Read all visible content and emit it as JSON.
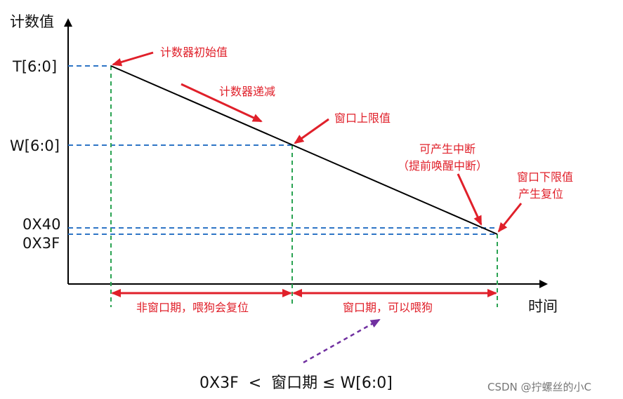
{
  "diagram": {
    "y_axis_label": "计数值",
    "x_axis_label": "时间",
    "y_ticks": {
      "t": "T[6:0]",
      "w": "W[6:0]",
      "h40": "0X40",
      "h3f": "0X3F"
    },
    "annotations": {
      "initial": "计数器初始值",
      "decrement": "计数器递减",
      "upper": "窗口上限值",
      "interrupt_1": "可产生中断",
      "interrupt_2": "（提前唤醒中断）",
      "lower_1": "窗口下限值",
      "lower_2": "产生复位"
    },
    "periods": {
      "non_window": "非窗口期，喂狗会复位",
      "window": "窗口期，可以喂狗"
    },
    "formula": "0X3F  <  窗口期 ≤ W[6:0]",
    "colors": {
      "red": "#e0202a",
      "blue": "#2e75c6",
      "green": "#2aa352",
      "purple": "#7030a0",
      "black": "#000000"
    }
  },
  "watermark": "CSDN @拧螺丝的小C"
}
